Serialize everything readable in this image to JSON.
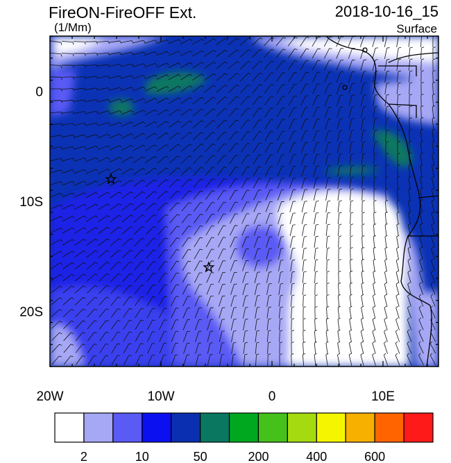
{
  "title_left": "FireON-FireOFF Ext.",
  "title_right": "2018-10-16_15",
  "units": "(1/Mm)",
  "level": "Surface",
  "map": {
    "x_ticks": [
      {
        "lon": -20,
        "label": "20W"
      },
      {
        "lon": -10,
        "label": "10W"
      },
      {
        "lon": 0,
        "label": "0"
      },
      {
        "lon": 10,
        "label": "10E"
      }
    ],
    "y_ticks": [
      {
        "lat": 0,
        "label": "0"
      },
      {
        "lat": -10,
        "label": "10S"
      },
      {
        "lat": -20,
        "label": "20S"
      }
    ],
    "lon_range": [
      -20,
      15
    ],
    "lat_range": [
      -25,
      5
    ],
    "markers": [
      {
        "name": "star-marker-1",
        "lon": -14.5,
        "lat": -8
      },
      {
        "name": "star-marker-2",
        "lon": -5.7,
        "lat": -16
      }
    ]
  },
  "colorbar": {
    "colors": [
      "#ffffff",
      "#a7a8f5",
      "#5a5af5",
      "#0a10f0",
      "#0a2fb0",
      "#0a7860",
      "#00a820",
      "#46c01a",
      "#a6da10",
      "#f5f500",
      "#f7af00",
      "#ff6400",
      "#ff1a1a"
    ],
    "labels": [
      {
        "index": 1,
        "text": "2"
      },
      {
        "index": 3,
        "text": "10"
      },
      {
        "index": 5,
        "text": "50"
      },
      {
        "index": 7,
        "text": "200"
      },
      {
        "index": 9,
        "text": "400"
      },
      {
        "index": 11,
        "text": "600"
      }
    ]
  }
}
